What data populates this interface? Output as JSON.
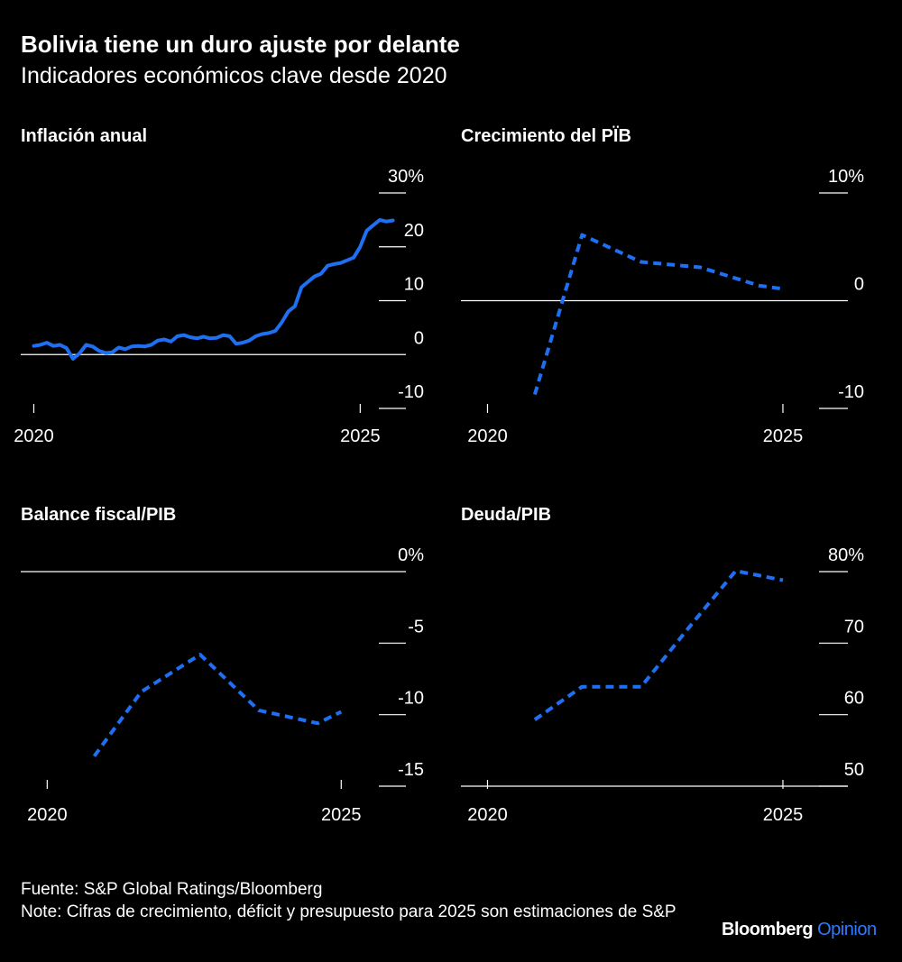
{
  "header": {
    "title": "Bolivia tiene un duro ajuste por delante",
    "subtitle": "Indicadores económicos clave desde 2020"
  },
  "footer": {
    "source": "Fuente: S&P Global Ratings/Bloomberg",
    "note": "Note: Cifras de crecimiento, déficit y presupuesto para 2025 son estimaciones de S&P"
  },
  "brand": {
    "part1": "Bloomberg",
    "part2": "Opinion",
    "accent": "#2f7bff"
  },
  "colors": {
    "background": "#000000",
    "text": "#ffffff",
    "series": "#1f6ff2"
  },
  "chart_data": [
    {
      "type": "line",
      "title": "Inflación anual",
      "ylim": [
        -10,
        30
      ],
      "y_ticks": [
        "30%",
        "20",
        "10",
        "0",
        "-10"
      ],
      "y_tick_values": [
        30,
        20,
        10,
        0,
        -10
      ],
      "x_ticks": [
        "2020",
        "2025"
      ],
      "x_tick_values": [
        2020,
        2025
      ],
      "xlim": [
        2019.8,
        2025.7
      ],
      "zero_line": 0,
      "line_style": "solid",
      "series": [
        {
          "name": "Inflación anual",
          "x": [
            2020.0,
            2020.1,
            2020.2,
            2020.3,
            2020.4,
            2020.5,
            2020.6,
            2020.7,
            2020.8,
            2020.9,
            2021.0,
            2021.1,
            2021.2,
            2021.3,
            2021.4,
            2021.5,
            2021.6,
            2021.7,
            2021.8,
            2021.9,
            2022.0,
            2022.1,
            2022.2,
            2022.3,
            2022.4,
            2022.5,
            2022.6,
            2022.7,
            2022.8,
            2022.9,
            2023.0,
            2023.1,
            2023.2,
            2023.3,
            2023.4,
            2023.5,
            2023.6,
            2023.7,
            2023.8,
            2023.9,
            2024.0,
            2024.1,
            2024.2,
            2024.3,
            2024.4,
            2024.5,
            2024.6,
            2024.7,
            2024.8,
            2024.9,
            2025.0,
            2025.1,
            2025.2,
            2025.3,
            2025.4,
            2025.5
          ],
          "values": [
            1.6,
            1.8,
            2.2,
            1.6,
            1.8,
            1.2,
            -0.8,
            0.2,
            1.8,
            1.5,
            0.7,
            0.3,
            0.4,
            1.3,
            1.0,
            1.5,
            1.6,
            1.5,
            1.8,
            2.6,
            2.8,
            2.4,
            3.4,
            3.6,
            3.2,
            3.0,
            3.3,
            3.0,
            3.1,
            3.6,
            3.4,
            2.0,
            2.2,
            2.6,
            3.4,
            3.8,
            4.0,
            4.4,
            6.0,
            8.0,
            9.0,
            12.5,
            13.5,
            14.5,
            15.0,
            16.5,
            16.8,
            17.0,
            17.5,
            18.0,
            20.0,
            23.0,
            24.0,
            25.0,
            24.7,
            24.9
          ]
        }
      ]
    },
    {
      "type": "line",
      "title": "Crecimiento del PÏB",
      "ylim": [
        -10,
        10
      ],
      "y_ticks": [
        "10%",
        "0",
        "-10"
      ],
      "y_tick_values": [
        10,
        0,
        -10
      ],
      "x_ticks": [
        "2020",
        "2025"
      ],
      "x_tick_values": [
        2020,
        2025
      ],
      "xlim": [
        2019.55,
        2026.1
      ],
      "zero_line": 0,
      "line_style": "dashed",
      "series": [
        {
          "name": "Crecimiento del PIB",
          "x": [
            2020.8,
            2021.6,
            2022.6,
            2023.6,
            2024.6,
            2025.0
          ],
          "values": [
            -8.7,
            6.1,
            3.6,
            3.1,
            1.4,
            1.1
          ]
        }
      ]
    },
    {
      "type": "line",
      "title": "Balance fiscal/PIB",
      "ylim": [
        -15,
        0
      ],
      "y_ticks": [
        "0%",
        "-5",
        "-10",
        "-15"
      ],
      "y_tick_values": [
        0,
        -5,
        -10,
        -15
      ],
      "x_ticks": [
        "2020",
        "2025"
      ],
      "x_tick_values": [
        2020,
        2025
      ],
      "xlim": [
        2019.55,
        2026.1
      ],
      "zero_line": 0,
      "line_style": "dashed",
      "series": [
        {
          "name": "Balance fiscal/PIB",
          "x": [
            2020.8,
            2021.6,
            2022.6,
            2023.6,
            2024.6,
            2025.0
          ],
          "values": [
            -12.9,
            -8.4,
            -5.8,
            -9.7,
            -10.6,
            -9.8
          ]
        }
      ]
    },
    {
      "type": "line",
      "title": "Deuda/PIB",
      "ylim": [
        50,
        80
      ],
      "y_ticks": [
        "80%",
        "70",
        "60",
        "50"
      ],
      "y_tick_values": [
        80,
        70,
        60,
        50
      ],
      "x_ticks": [
        "2020",
        "2025"
      ],
      "x_tick_values": [
        2020,
        2025
      ],
      "xlim": [
        2019.55,
        2026.1
      ],
      "zero_line": null,
      "line_style": "dashed",
      "series": [
        {
          "name": "Deuda/PIB",
          "x": [
            2020.8,
            2021.6,
            2022.6,
            2023.4,
            2024.2,
            2025.0
          ],
          "values": [
            59.3,
            63.9,
            63.9,
            72.1,
            80.1,
            78.8
          ]
        }
      ]
    }
  ]
}
